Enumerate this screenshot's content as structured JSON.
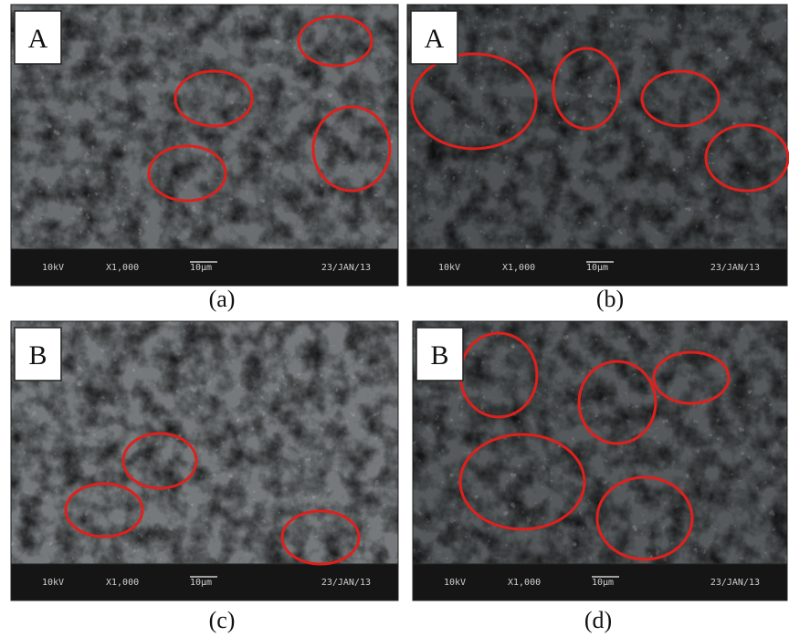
{
  "panels": [
    {
      "label": "A",
      "caption": "(a)",
      "voltage": "10kV",
      "magnification": "X1,000",
      "scale": "10μm",
      "date": "23/JAN/13"
    },
    {
      "label": "A",
      "caption": "(b)",
      "voltage": "10kV",
      "magnification": "X1,000",
      "scale": "10μm",
      "date": "23/JAN/13"
    },
    {
      "label": "B",
      "caption": "(c)",
      "voltage": "10kV",
      "magnification": "X1,000",
      "scale": "10μm",
      "date": "23/JAN/13"
    },
    {
      "label": "B",
      "caption": "(d)",
      "voltage": "10kV",
      "magnification": "X1,000",
      "scale": "10μm",
      "date": "23/JAN/13"
    }
  ]
}
